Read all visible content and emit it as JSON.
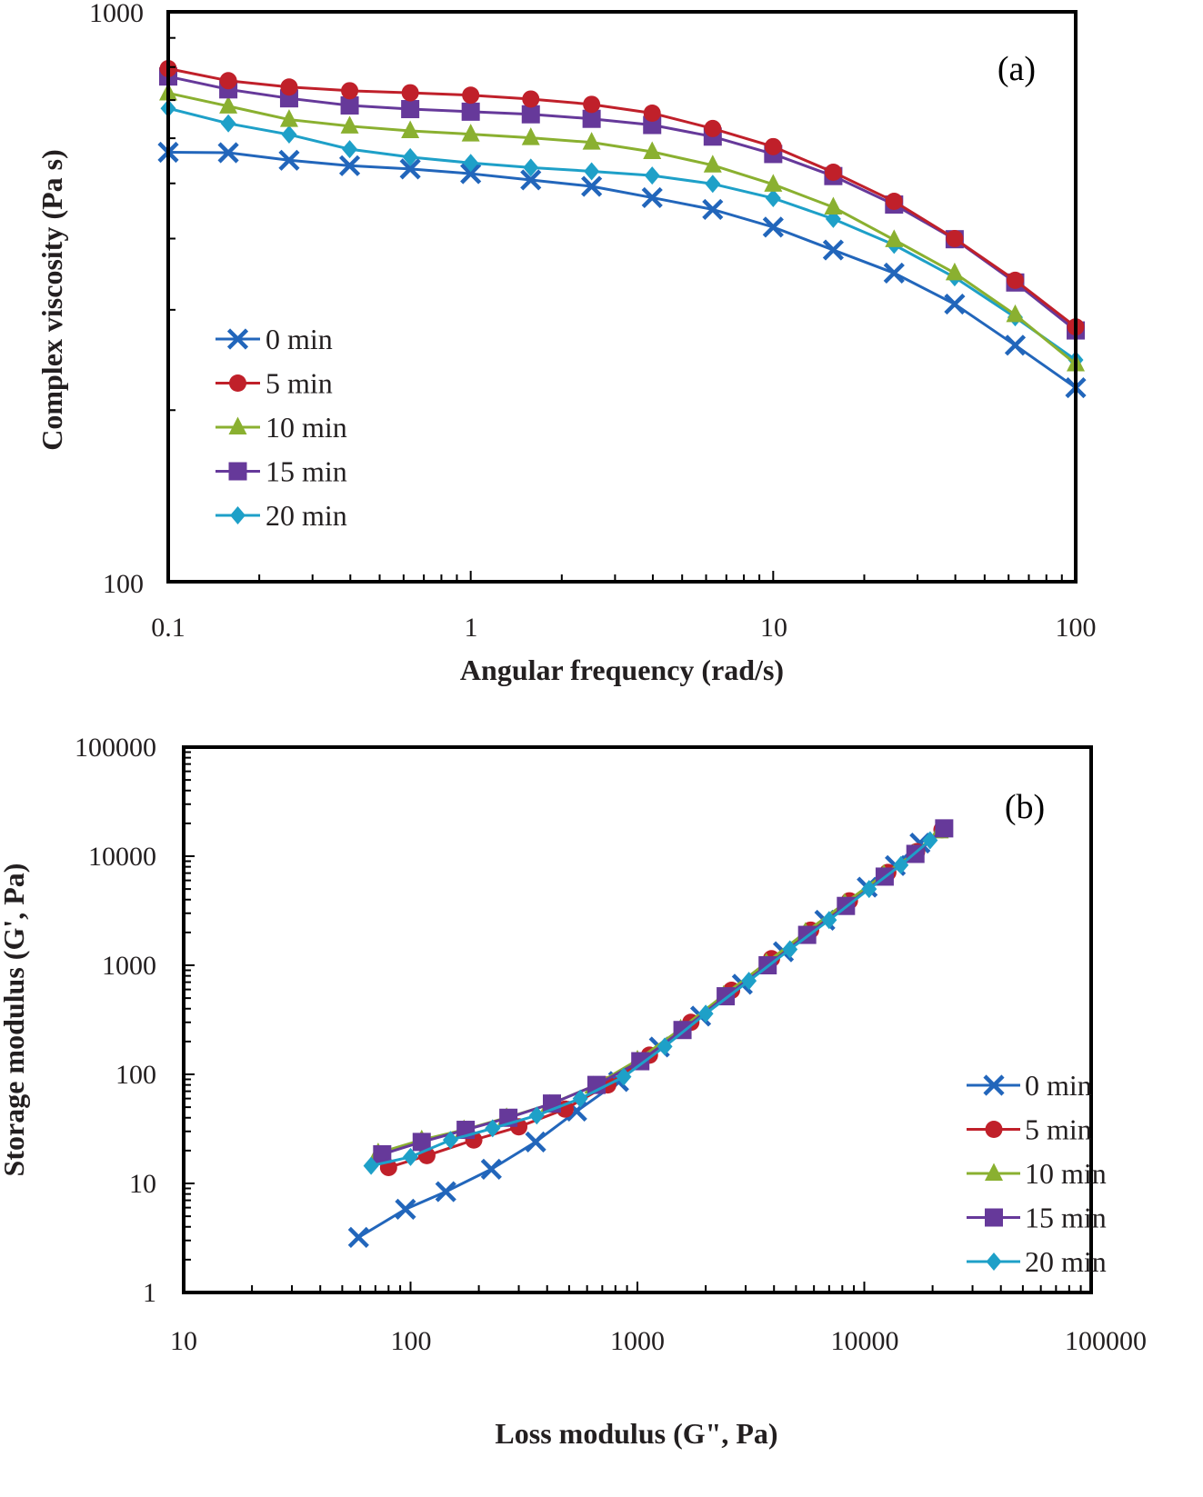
{
  "chart_data": [
    {
      "id": "a",
      "type": "line",
      "panel_label": "(a)",
      "title": "",
      "xlabel": "Angular frequency (rad/s)",
      "ylabel": "Complex viscosity (Pa s)",
      "xscale": "log",
      "yscale": "log",
      "xlim": [
        0.1,
        100
      ],
      "ylim": [
        100,
        1000
      ],
      "x_tick_labels": [
        "0.1",
        "1",
        "10",
        "100"
      ],
      "y_tick_labels": [
        "100",
        "1000"
      ],
      "grid": false,
      "legend_position": "center-left",
      "x": [
        0.1,
        0.158,
        0.251,
        0.398,
        0.631,
        1,
        1.58,
        2.51,
        3.98,
        6.31,
        10,
        15.8,
        25.1,
        39.8,
        63.1,
        100
      ],
      "series": [
        {
          "name": "0 min",
          "marker": "x",
          "color": "#2266bb",
          "values": [
            567,
            566,
            549,
            537,
            530,
            520,
            507,
            494,
            472,
            450,
            419,
            382,
            348,
            307,
            260,
            219
          ]
        },
        {
          "name": "5 min",
          "marker": "circle",
          "color": "#c0202a",
          "values": [
            795,
            757,
            738,
            727,
            721,
            714,
            703,
            688,
            664,
            624,
            580,
            523,
            465,
            400,
            338,
            280
          ]
        },
        {
          "name": "10 min",
          "marker": "triangle",
          "color": "#8ab030",
          "values": [
            720,
            683,
            647,
            630,
            618,
            610,
            601,
            590,
            568,
            538,
            498,
            454,
            398,
            348,
            294,
            241
          ]
        },
        {
          "name": "15 min",
          "marker": "square",
          "color": "#66399a",
          "values": [
            770,
            731,
            705,
            685,
            675,
            668,
            661,
            649,
            633,
            604,
            563,
            515,
            459,
            399,
            335,
            276
          ]
        },
        {
          "name": "20 min",
          "marker": "diamond",
          "color": "#1ea0c8",
          "values": [
            677,
            637,
            609,
            574,
            556,
            543,
            533,
            525,
            516,
            499,
            471,
            433,
            390,
            342,
            291,
            245
          ]
        }
      ]
    },
    {
      "id": "b",
      "type": "line",
      "panel_label": "(b)",
      "title": "",
      "xlabel": "Loss modulus (G\", Pa)",
      "ylabel": "Storage modulus (G', Pa)",
      "xscale": "log",
      "yscale": "log",
      "xlim": [
        10,
        100000
      ],
      "ylim": [
        1,
        100000
      ],
      "x_tick_labels": [
        "10",
        "100",
        "1000",
        "10000",
        "100000"
      ],
      "y_tick_labels": [
        "1",
        "10",
        "100",
        "1000",
        "10000",
        "100000"
      ],
      "grid": false,
      "legend_position": "bottom-right",
      "series": [
        {
          "name": "0 min",
          "marker": "x",
          "color": "#2266bb",
          "points": [
            [
              59,
              3.2
            ],
            [
              95,
              5.8
            ],
            [
              143,
              8.4
            ],
            [
              227,
              13.5
            ],
            [
              356,
              24
            ],
            [
              540,
              46
            ],
            [
              826,
              86
            ],
            [
              1250,
              178
            ],
            [
              1900,
              342
            ],
            [
              2900,
              670
            ],
            [
              4400,
              1330
            ],
            [
              6700,
              2590
            ],
            [
              10300,
              5200
            ],
            [
              13700,
              8200
            ],
            [
              17600,
              13200
            ]
          ]
        },
        {
          "name": "5 min",
          "marker": "circle",
          "color": "#c0202a",
          "points": [
            [
              80,
              14
            ],
            [
              118,
              18
            ],
            [
              190,
              25
            ],
            [
              300,
              33
            ],
            [
              480,
              48
            ],
            [
              740,
              80
            ],
            [
              1130,
              150
            ],
            [
              1720,
              300
            ],
            [
              2600,
              590
            ],
            [
              3900,
              1150
            ],
            [
              5800,
              2100
            ],
            [
              8600,
              3900
            ],
            [
              12700,
              7100
            ],
            [
              17000,
              11000
            ],
            [
              22000,
              17500
            ]
          ]
        },
        {
          "name": "10 min",
          "marker": "triangle",
          "color": "#8ab030",
          "points": [
            [
              72,
              19
            ],
            [
              112,
              25
            ],
            [
              172,
              31
            ],
            [
              265,
              40
            ],
            [
              410,
              53
            ],
            [
              640,
              78
            ],
            [
              1000,
              135
            ],
            [
              1550,
              260
            ],
            [
              2400,
              530
            ],
            [
              3700,
              1050
            ],
            [
              5500,
              2000
            ],
            [
              8200,
              3700
            ],
            [
              12200,
              6800
            ],
            [
              16500,
              10500
            ],
            [
              21500,
              17000
            ]
          ]
        },
        {
          "name": "15 min",
          "marker": "square",
          "color": "#66399a",
          "points": [
            [
              75,
              18.5
            ],
            [
              112,
              24
            ],
            [
              175,
              31
            ],
            [
              270,
              40
            ],
            [
              420,
              54
            ],
            [
              660,
              80
            ],
            [
              1030,
              132
            ],
            [
              1580,
              255
            ],
            [
              2450,
              520
            ],
            [
              3750,
              1000
            ],
            [
              5600,
              1900
            ],
            [
              8300,
              3500
            ],
            [
              12300,
              6500
            ],
            [
              16800,
              10500
            ],
            [
              22500,
              18000
            ]
          ]
        },
        {
          "name": "20 min",
          "marker": "diamond",
          "color": "#1ea0c8",
          "points": [
            [
              67,
              14.5
            ],
            [
              100,
              17.5
            ],
            [
              150,
              25
            ],
            [
              230,
              32
            ],
            [
              360,
              42
            ],
            [
              560,
              60
            ],
            [
              870,
              95
            ],
            [
              1320,
              180
            ],
            [
              2000,
              360
            ],
            [
              3100,
              720
            ],
            [
              4700,
              1400
            ],
            [
              7000,
              2600
            ],
            [
              10500,
              5000
            ],
            [
              14500,
              8300
            ],
            [
              19500,
              14000
            ]
          ]
        }
      ]
    }
  ]
}
